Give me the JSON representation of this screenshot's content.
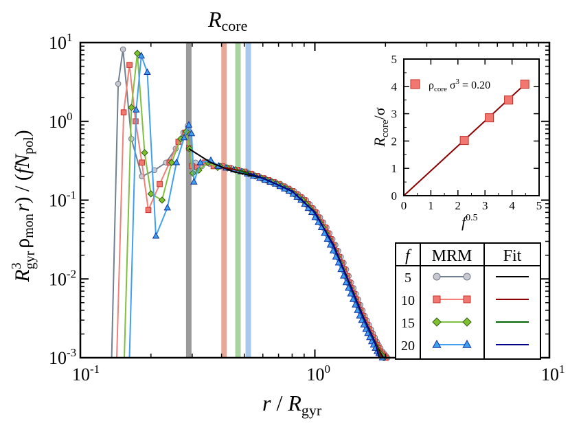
{
  "chart_data": [
    {
      "type": "line",
      "scale": "log-log",
      "title": "",
      "annotation": {
        "base": "R",
        "sub": "core"
      },
      "xlabel": {
        "var": "r",
        "den_base": "R",
        "den_sub": "gyr"
      },
      "ylabel": {
        "pre": "R",
        "pre_sup": "3",
        "pre_sub": "gyr",
        "mid": "ρ",
        "mid_sub": "mon",
        "arg": "(r) / (",
        "f": "f",
        "N": "N",
        "N_sub": "pol",
        "close": ")"
      },
      "xlim": [
        0.1,
        10
      ],
      "ylim": [
        0.001,
        10
      ],
      "x_ticks": [
        {
          "base": "10",
          "exp": "-1",
          "value": 0.1
        },
        {
          "base": "10",
          "exp": "0",
          "value": 1
        },
        {
          "base": "10",
          "exp": "1",
          "value": 10
        }
      ],
      "y_ticks": [
        {
          "base": "10",
          "exp": "-3",
          "value": 0.001
        },
        {
          "base": "10",
          "exp": "-2",
          "value": 0.01
        },
        {
          "base": "10",
          "exp": "-1",
          "value": 0.1
        },
        {
          "base": "10",
          "exp": "0",
          "value": 1
        },
        {
          "base": "10",
          "exp": "1",
          "value": 10
        }
      ],
      "r_core_lines": [
        {
          "f": "5",
          "x": 0.29,
          "color": "#9a9a9a"
        },
        {
          "f": "10",
          "x": 0.41,
          "color": "#e8a898"
        },
        {
          "f": "15",
          "x": 0.47,
          "color": "#a8d4a0"
        },
        {
          "f": "20",
          "x": 0.52,
          "color": "#a8c8ec"
        }
      ],
      "series": [
        {
          "name": "5",
          "marker": "circle",
          "line_color": "#708090",
          "fill": "#c8c8d0",
          "stroke": "#707888",
          "x": [
            0.136,
            0.145,
            0.152,
            0.165,
            0.183,
            0.207,
            0.232,
            0.255,
            0.275,
            0.287,
            0.29,
            0.298,
            0.31,
            0.33,
            0.355
          ],
          "y": [
            0.001,
            3.0,
            8.2,
            0.6,
            0.2,
            0.24,
            0.3,
            0.45,
            0.72,
            0.88,
            0.45,
            0.28,
            0.3,
            0.27,
            0.29
          ]
        },
        {
          "name": "10",
          "marker": "square",
          "line_color": "#f08078",
          "fill": "#f07870",
          "stroke": "#c03028",
          "x": [
            0.143,
            0.153,
            0.162,
            0.172,
            0.183,
            0.195,
            0.218,
            0.24,
            0.262,
            0.28,
            0.291,
            0.3,
            0.315,
            0.34,
            0.37
          ],
          "y": [
            0.001,
            1.3,
            5.2,
            1.0,
            0.3,
            0.075,
            0.16,
            0.3,
            0.55,
            0.72,
            0.46,
            0.27,
            0.26,
            0.3,
            0.27
          ]
        },
        {
          "name": "15",
          "marker": "diamond",
          "line_color": "#80c040",
          "fill": "#80c030",
          "stroke": "#306010",
          "x": [
            0.154,
            0.165,
            0.175,
            0.188,
            0.2,
            0.223,
            0.245,
            0.268,
            0.283,
            0.292,
            0.302,
            0.32,
            0.35,
            0.385
          ],
          "y": [
            0.001,
            1.5,
            7.3,
            0.4,
            0.12,
            0.1,
            0.3,
            0.6,
            0.74,
            0.45,
            0.22,
            0.24,
            0.3,
            0.26
          ]
        },
        {
          "name": "20",
          "marker": "triangle",
          "line_color": "#40a0f0",
          "fill": "#40a0f0",
          "stroke": "#1030a0",
          "x": [
            0.162,
            0.173,
            0.182,
            0.193,
            0.21,
            0.235,
            0.257,
            0.277,
            0.29,
            0.298,
            0.305,
            0.325,
            0.36,
            0.39
          ],
          "y": [
            0.001,
            1.4,
            6.8,
            4.2,
            0.035,
            0.08,
            0.3,
            0.62,
            0.9,
            0.7,
            0.17,
            0.3,
            0.32,
            0.27
          ]
        }
      ],
      "tail": {
        "x": [
          0.4,
          0.5,
          0.6,
          0.7,
          0.8,
          0.9,
          1.0,
          1.1,
          1.2,
          1.3,
          1.4,
          1.5,
          1.6,
          1.7,
          1.8,
          1.9,
          2.0
        ],
        "y": [
          0.27,
          0.23,
          0.19,
          0.16,
          0.13,
          0.1,
          0.07,
          0.045,
          0.027,
          0.016,
          0.009,
          0.0055,
          0.0034,
          0.0023,
          0.0016,
          0.0012,
          0.001
        ],
        "x_shift": {
          "5": 1.02,
          "10": 1.0,
          "15": 0.985,
          "20": 0.97
        }
      },
      "fits": [
        {
          "name": "5",
          "color": "#000000",
          "x": [
            0.29,
            0.36,
            0.45,
            0.6,
            0.8,
            1.0,
            1.2,
            1.4,
            1.6,
            1.8,
            1.95
          ],
          "y": [
            0.45,
            0.3,
            0.23,
            0.19,
            0.13,
            0.07,
            0.027,
            0.009,
            0.0034,
            0.0016,
            0.001
          ]
        },
        {
          "name": "10",
          "color": "#8b0000",
          "x": [
            0.41,
            0.5,
            0.6,
            0.8,
            1.0,
            1.2,
            1.4,
            1.6,
            1.8,
            1.93
          ],
          "y": [
            0.26,
            0.23,
            0.19,
            0.13,
            0.07,
            0.027,
            0.009,
            0.0034,
            0.0016,
            0.001
          ]
        },
        {
          "name": "15",
          "color": "#006400",
          "x": [
            0.47,
            0.6,
            0.8,
            1.0,
            1.2,
            1.4,
            1.6,
            1.8,
            1.9
          ],
          "y": [
            0.24,
            0.19,
            0.13,
            0.07,
            0.027,
            0.009,
            0.0034,
            0.0016,
            0.001
          ]
        },
        {
          "name": "20",
          "color": "#00008b",
          "x": [
            0.52,
            0.6,
            0.8,
            1.0,
            1.2,
            1.4,
            1.6,
            1.8,
            1.88
          ],
          "y": [
            0.22,
            0.19,
            0.13,
            0.07,
            0.027,
            0.009,
            0.0034,
            0.0016,
            0.001
          ]
        }
      ],
      "legend_table": {
        "headers": {
          "f": "f",
          "mrm": "MRM",
          "fit": "Fit"
        },
        "rows": [
          {
            "f": "5",
            "marker": "circle",
            "line_color": "#708090",
            "fill": "#c8c8d0",
            "stroke": "#707888",
            "fit_color": "#000000"
          },
          {
            "f": "10",
            "marker": "square",
            "line_color": "#f08078",
            "fill": "#f07870",
            "stroke": "#c03028",
            "fit_color": "#8b0000"
          },
          {
            "f": "15",
            "marker": "diamond",
            "line_color": "#80c040",
            "fill": "#80c030",
            "stroke": "#306010",
            "fit_color": "#006400"
          },
          {
            "f": "20",
            "marker": "triangle",
            "line_color": "#40a0f0",
            "fill": "#40a0f0",
            "stroke": "#1030a0",
            "fit_color": "#00008b"
          }
        ]
      }
    },
    {
      "type": "scatter",
      "title": "",
      "xlabel": {
        "base": "f",
        "sup": "0.5"
      },
      "ylabel": {
        "base": "R",
        "sub": "core",
        "tail": "/σ"
      },
      "xlim": [
        0,
        5
      ],
      "ylim": [
        0,
        5
      ],
      "x_ticks": [
        "0",
        "1",
        "2",
        "3",
        "4",
        "5"
      ],
      "y_ticks": [
        "0",
        "1",
        "2",
        "3",
        "4",
        "5"
      ],
      "points": {
        "x": [
          2.236,
          3.162,
          3.873,
          4.472
        ],
        "y": [
          2.02,
          2.85,
          3.5,
          4.08
        ]
      },
      "fit_line": {
        "x": [
          0,
          4.6
        ],
        "y": [
          0,
          4.19
        ]
      },
      "marker_fill": "#f07870",
      "marker_stroke": "#c03028",
      "line_color": "#8b0000",
      "legend": {
        "pre": "ρ",
        "pre_sub": "core",
        "mid": " σ",
        "mid_sup": "3",
        "tail": " = 0.20"
      }
    }
  ]
}
